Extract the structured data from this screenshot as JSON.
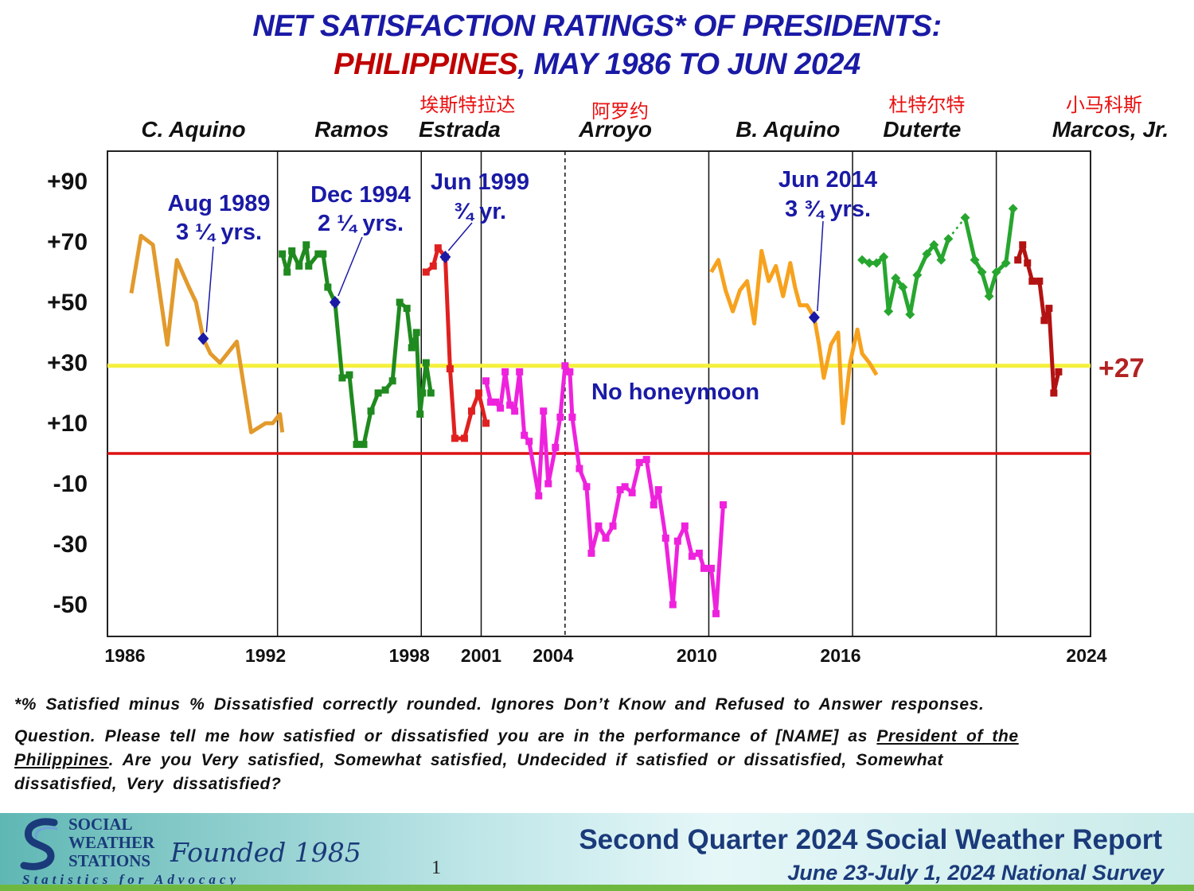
{
  "title": {
    "line1": "NET SATISFACTION RATINGS* OF PRESIDENTS:",
    "line2_red": "PHILIPPINES",
    "line2_blue": ", MAY 1986 TO JUN 2024"
  },
  "chart_data": {
    "type": "line",
    "title": "NET SATISFACTION RATINGS* OF PRESIDENTS: PHILIPPINES, MAY 1986 TO JUN 2024",
    "xlabel": "",
    "ylabel": "",
    "xlim": [
      1986,
      2024
    ],
    "ylim": [
      -60,
      100
    ],
    "y_ticks": [
      "+90",
      "+70",
      "+50",
      "+30",
      "+10",
      "-10",
      "-30",
      "-50"
    ],
    "y_tick_values": [
      90,
      70,
      50,
      30,
      10,
      -10,
      -30,
      -50
    ],
    "x_ticks": [
      "1986",
      "1992",
      "1998",
      "2001",
      "2004",
      "2010",
      "2016",
      "2024"
    ],
    "x_tick_values": [
      1986,
      1992,
      1998,
      2001,
      2004,
      2010,
      2016,
      2024
    ],
    "grid": false,
    "reference_lines": [
      {
        "y": 0,
        "color": "#dd1111"
      },
      {
        "y": 29,
        "color": "#f5f03c",
        "label": "+27",
        "label_color": "#b22222"
      }
    ],
    "term_boundaries": [
      1992.5,
      1998.5,
      2001.0,
      2010.5,
      2016.5,
      2022.5
    ],
    "dashed_boundaries": [
      2004.5
    ],
    "presidents": [
      {
        "name": "C. Aquino",
        "chinese": "",
        "x": 1989.2
      },
      {
        "name": "Ramos",
        "chinese": "",
        "x": 1995.6
      },
      {
        "name": "Estrada",
        "chinese": "埃斯特拉达",
        "x": 2000.1
      },
      {
        "name": "Arroyo",
        "chinese": "阿罗约",
        "x": 2006.6
      },
      {
        "name": "B. Aquino",
        "chinese": "",
        "x": 2013.8
      },
      {
        "name": "Duterte",
        "chinese": "杜特尔特",
        "x": 2019.4
      },
      {
        "name": "Marcos, Jr.",
        "chinese": "小马科斯",
        "x": 2024.8
      }
    ],
    "series": [
      {
        "name": "C. Aquino",
        "color": "#e29a2c",
        "marker": "none",
        "points": [
          [
            1986.4,
            53
          ],
          [
            1986.8,
            72
          ],
          [
            1987.3,
            69
          ],
          [
            1987.9,
            36
          ],
          [
            1988.3,
            64
          ],
          [
            1988.8,
            55
          ],
          [
            1989.1,
            50
          ],
          [
            1989.4,
            38
          ],
          [
            1989.7,
            33
          ],
          [
            1990.1,
            30
          ],
          [
            1990.8,
            37
          ],
          [
            1991.4,
            7
          ],
          [
            1992.0,
            10
          ],
          [
            1992.3,
            10
          ],
          [
            1992.6,
            13
          ],
          [
            1992.7,
            7
          ]
        ]
      },
      {
        "name": "Ramos",
        "color": "#1f8a1f",
        "marker": "square",
        "points": [
          [
            1992.7,
            66
          ],
          [
            1992.9,
            60
          ],
          [
            1993.1,
            67
          ],
          [
            1993.4,
            62
          ],
          [
            1993.7,
            69
          ],
          [
            1993.8,
            62
          ],
          [
            1994.2,
            66
          ],
          [
            1994.4,
            66
          ],
          [
            1994.6,
            55
          ],
          [
            1994.9,
            50
          ],
          [
            1995.2,
            25
          ],
          [
            1995.5,
            26
          ],
          [
            1995.8,
            3
          ],
          [
            1996.1,
            3
          ],
          [
            1996.4,
            14
          ],
          [
            1996.7,
            20
          ],
          [
            1997.0,
            21
          ],
          [
            1997.3,
            24
          ],
          [
            1997.6,
            50
          ],
          [
            1997.9,
            48
          ],
          [
            1998.1,
            35
          ],
          [
            1998.3,
            40
          ],
          [
            1998.45,
            13
          ],
          [
            1998.55,
            20
          ],
          [
            1998.7,
            30
          ],
          [
            1998.9,
            20
          ]
        ]
      },
      {
        "name": "Estrada",
        "color": "#e02020",
        "marker": "square",
        "points": [
          [
            1998.7,
            60
          ],
          [
            1999.0,
            62
          ],
          [
            1999.2,
            68
          ],
          [
            1999.5,
            65
          ],
          [
            1999.7,
            28
          ],
          [
            1999.9,
            5
          ],
          [
            2000.3,
            5
          ],
          [
            2000.6,
            14
          ],
          [
            2000.9,
            20
          ],
          [
            2001.2,
            10
          ]
        ]
      },
      {
        "name": "Arroyo",
        "color": "#ee22dd",
        "marker": "square",
        "points": [
          [
            2001.2,
            24
          ],
          [
            2001.4,
            17
          ],
          [
            2001.6,
            17
          ],
          [
            2001.8,
            15
          ],
          [
            2002.0,
            27
          ],
          [
            2002.2,
            16
          ],
          [
            2002.4,
            14
          ],
          [
            2002.6,
            27
          ],
          [
            2002.8,
            6
          ],
          [
            2003.0,
            4
          ],
          [
            2003.4,
            -14
          ],
          [
            2003.6,
            14
          ],
          [
            2003.8,
            -10
          ],
          [
            2004.1,
            2
          ],
          [
            2004.3,
            12
          ],
          [
            2004.5,
            29
          ],
          [
            2004.7,
            27
          ],
          [
            2004.8,
            12
          ],
          [
            2005.1,
            -5
          ],
          [
            2005.4,
            -11
          ],
          [
            2005.6,
            -33
          ],
          [
            2005.9,
            -24
          ],
          [
            2006.2,
            -28
          ],
          [
            2006.5,
            -24
          ],
          [
            2006.8,
            -12
          ],
          [
            2007.0,
            -11
          ],
          [
            2007.3,
            -13
          ],
          [
            2007.6,
            -3
          ],
          [
            2007.9,
            -2
          ],
          [
            2008.2,
            -17
          ],
          [
            2008.4,
            -12
          ],
          [
            2008.7,
            -28
          ],
          [
            2009.0,
            -50
          ],
          [
            2009.2,
            -29
          ],
          [
            2009.5,
            -24
          ],
          [
            2009.8,
            -34
          ],
          [
            2010.1,
            -33
          ],
          [
            2010.3,
            -38
          ],
          [
            2010.6,
            -38
          ],
          [
            2010.8,
            -53
          ],
          [
            2011.1,
            -17
          ]
        ]
      },
      {
        "name": "B. Aquino",
        "color": "#f7a21e",
        "marker": "none",
        "points": [
          [
            2010.6,
            60
          ],
          [
            2010.9,
            64
          ],
          [
            2011.2,
            54
          ],
          [
            2011.5,
            47
          ],
          [
            2011.8,
            54
          ],
          [
            2012.1,
            57
          ],
          [
            2012.4,
            43
          ],
          [
            2012.7,
            67
          ],
          [
            2013.0,
            57
          ],
          [
            2013.3,
            62
          ],
          [
            2013.6,
            52
          ],
          [
            2013.9,
            63
          ],
          [
            2014.1,
            55
          ],
          [
            2014.3,
            49
          ],
          [
            2014.6,
            49
          ],
          [
            2014.9,
            45
          ],
          [
            2015.1,
            36
          ],
          [
            2015.3,
            25
          ],
          [
            2015.6,
            36
          ],
          [
            2015.9,
            40
          ],
          [
            2016.1,
            10
          ],
          [
            2016.4,
            30
          ],
          [
            2016.7,
            41
          ],
          [
            2016.9,
            33
          ],
          [
            2017.2,
            30
          ],
          [
            2017.5,
            26
          ]
        ]
      },
      {
        "name": "Duterte",
        "color": "#27a62f",
        "marker": "diamond",
        "points": [
          [
            2016.9,
            64
          ],
          [
            2017.2,
            63
          ],
          [
            2017.5,
            63
          ],
          [
            2017.8,
            65
          ],
          [
            2018.0,
            47
          ],
          [
            2018.3,
            58
          ],
          [
            2018.6,
            55
          ],
          [
            2018.9,
            46
          ],
          [
            2019.2,
            59
          ],
          [
            2019.6,
            66
          ],
          [
            2019.9,
            69
          ],
          [
            2020.2,
            64
          ],
          [
            2020.5,
            71
          ]
        ]
      },
      {
        "name": "Duterte dotted gap",
        "color": "#27a62f",
        "marker": "none",
        "dotted": true,
        "points": [
          [
            2020.5,
            71
          ],
          [
            2021.2,
            78
          ]
        ]
      },
      {
        "name": "Duterte (cont.)",
        "color": "#27a62f",
        "marker": "diamond",
        "points": [
          [
            2021.2,
            78
          ],
          [
            2021.6,
            64
          ],
          [
            2021.9,
            60
          ],
          [
            2022.2,
            52
          ],
          [
            2022.5,
            60
          ],
          [
            2022.9,
            63
          ],
          [
            2023.2,
            81
          ]
        ]
      },
      {
        "name": "Marcos, Jr.",
        "color": "#b31212",
        "marker": "square",
        "points": [
          [
            2023.4,
            64
          ],
          [
            2023.6,
            69
          ],
          [
            2023.8,
            63
          ],
          [
            2024.0,
            57
          ],
          [
            2024.3,
            57
          ],
          [
            2024.5,
            44
          ],
          [
            2024.7,
            48
          ],
          [
            2024.9,
            20
          ],
          [
            2025.1,
            27
          ]
        ]
      }
    ],
    "highlight_points": [
      {
        "x": 1989.4,
        "y": 38,
        "label_l1": "Aug 1989",
        "label_l2": "3 ¼ yrs."
      },
      {
        "x": 1994.9,
        "y": 50,
        "label_l1": "Dec 1994",
        "label_l2": "2 ¼ yrs."
      },
      {
        "x": 1999.5,
        "y": 65,
        "label_l1": "Jun 1999",
        "label_l2": "¾ yr."
      },
      {
        "x": 2014.9,
        "y": 45,
        "label_l1": "Jun 2014",
        "label_l2": "3 ¾ yrs."
      }
    ],
    "annotations": [
      {
        "text": "No honeymoon",
        "x": 2005.0,
        "y": 19,
        "color": "#1a1aa6"
      }
    ]
  },
  "footnote": {
    "line1": "*% Satisfied minus % Dissatisfied correctly rounded. Ignores Don’t Know and Refused to Answer responses.",
    "q_prefix": "Question. Please tell me how satisfied or dissatisfied you are in the performance of [NAME] as ",
    "q_underline_1": "President of the",
    "q_underline_2": "Philippines",
    "q_line2_rest": ". Are you Very satisfied, Somewhat satisfied, Undecided if satisfied or dissatisfied, Somewhat",
    "q_line3": "dissatisfied, Very dissatisfied?"
  },
  "footer": {
    "logo_line1": "SOCIAL",
    "logo_line2": "WEATHER",
    "logo_line3": "STATIONS",
    "founded": "Founded 1985",
    "tagline": "Statistics for Advocacy",
    "page_number": "1",
    "report_title": "Second Quarter 2024 Social Weather Report",
    "survey_dates": "June 23-July 1, 2024 National Survey"
  }
}
